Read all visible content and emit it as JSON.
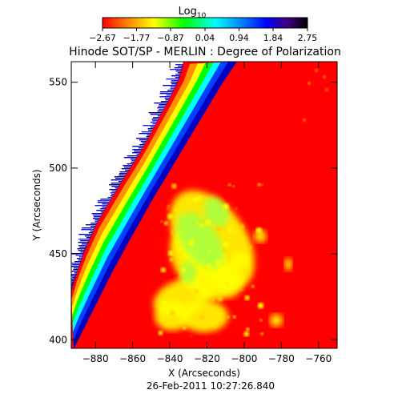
{
  "chart_data": {
    "type": "heatmap",
    "title": "Hinode SOT/SP - MERLIN : Degree of Polarization",
    "xlabel": "X (Arcseconds)",
    "ylabel": "Y (Arcseconds)",
    "footer": "26-Feb-2011 10:27:26.840",
    "xlim": [
      -893,
      -750
    ],
    "ylim": [
      395,
      562
    ],
    "x_ticks": [
      -880,
      -860,
      -840,
      -820,
      -800,
      -780,
      -760
    ],
    "y_ticks": [
      400,
      450,
      500,
      550
    ],
    "colorbar": {
      "title": "Log",
      "title_sub": "10",
      "ticks": [
        -2.67,
        -1.77,
        -0.87,
        0.04,
        0.94,
        1.84,
        2.75
      ],
      "tick_labels": [
        "−2.67",
        "−1.77",
        "−0.87",
        "0.04",
        "0.94",
        "1.84",
        "2.75"
      ],
      "range": [
        -2.67,
        2.75
      ],
      "colors": [
        "#ff0000",
        "#ff8000",
        "#ffff00",
        "#00ff00",
        "#00ffff",
        "#0080ff",
        "#0000ff",
        "#400080",
        "#000000"
      ]
    },
    "background_color": "#ff0000",
    "colors": {
      "low": "#ff0000",
      "active_region": "#ffff00",
      "active_core": "#a8ff40",
      "limb_band": [
        "#ff0000",
        "#ff9000",
        "#ffff00",
        "#00ff00",
        "#00ffff",
        "#0040ff",
        "#0000c0"
      ],
      "off_disk": "#ffffff"
    }
  }
}
